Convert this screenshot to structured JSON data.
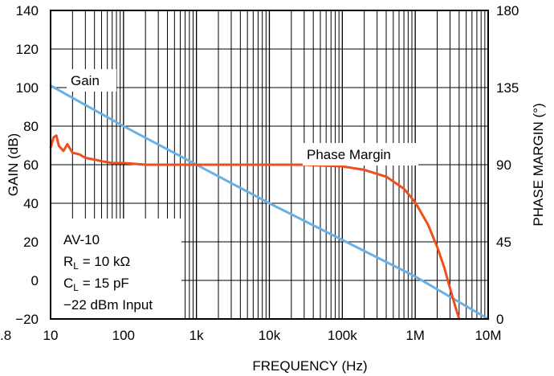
{
  "chart_data": {
    "type": "line",
    "title": "",
    "xlabel": "FREQUENCY (Hz)",
    "ylabel": "GAIN (dB)",
    "y2label": "PHASE MARGIN (°)",
    "x_scale": "log",
    "xlim": [
      10,
      10000000
    ],
    "ylim": [
      -20,
      140
    ],
    "y2lim": [
      0,
      180
    ],
    "grid": true,
    "x_tick_labels": [
      {
        "value": 10,
        "label": "10"
      },
      {
        "value": 100,
        "label": "100"
      },
      {
        "value": 1000,
        "label": "1k"
      },
      {
        "value": 10000,
        "label": "10k"
      },
      {
        "value": 100000,
        "label": "100k"
      },
      {
        "value": 1000000,
        "label": "1M"
      },
      {
        "value": 10000000,
        "label": "10M"
      }
    ],
    "y_ticks": [
      -20,
      0,
      20,
      40,
      60,
      80,
      100,
      120,
      140
    ],
    "y_tick_labels": [
      "−20",
      "0",
      "20",
      "40",
      "60",
      "80",
      "100",
      "120",
      "140"
    ],
    "y2_ticks": [
      0,
      45,
      90,
      135,
      180
    ],
    "y2_tick_labels": [
      "0",
      "45",
      "90",
      "135",
      "180"
    ],
    "left_edge_fragment": ".8",
    "annotation_lines": [
      "AV-10",
      "R_L = 10 kΩ",
      "C_L = 15 pF",
      "−22 dBm Input"
    ],
    "annotation": {
      "av": "AV-10",
      "rl_prefix": "R",
      "rl_sub": "L",
      "rl_rest": " = 10 kΩ",
      "cl_prefix": "C",
      "cl_sub": "L",
      "cl_rest": " = 15 pF",
      "input": "−22 dBm Input"
    },
    "series": [
      {
        "name": "Gain",
        "axis": "left",
        "color": "#6ab0e4",
        "x": [
          10,
          100,
          1000,
          10000,
          100000,
          1000000,
          10000000
        ],
        "y": [
          101,
          80,
          60,
          40,
          21,
          2,
          -20
        ]
      },
      {
        "name": "Phase Margin",
        "axis": "right",
        "color": "#f04e1c",
        "x": [
          10,
          11,
          12,
          13,
          15,
          17,
          20,
          25,
          30,
          40,
          50,
          70,
          100,
          200,
          500,
          1000,
          3000,
          10000,
          30000,
          100000,
          200000,
          400000,
          700000,
          1000000,
          1500000,
          2000000,
          2500000,
          3000000,
          3500000,
          4000000
        ],
        "y": [
          100,
          106,
          107,
          101,
          98,
          102,
          97,
          96,
          94,
          93,
          92,
          91,
          91,
          90,
          90,
          90,
          90,
          90,
          90,
          89,
          87,
          83,
          76,
          68,
          55,
          42,
          30,
          18,
          8,
          -2
        ]
      }
    ]
  }
}
